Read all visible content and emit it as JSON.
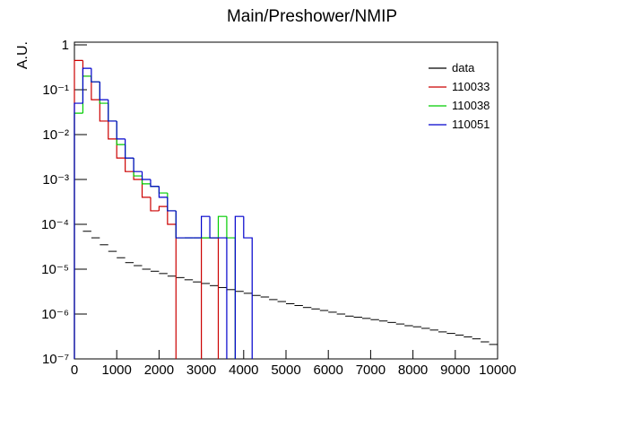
{
  "chart_data": {
    "type": "histogram",
    "title": "Main/Preshower/NMIP",
    "y_label": "A.U.",
    "log_y": true,
    "legend": "top-right",
    "xlim": [
      0,
      10000
    ],
    "ylim": [
      1e-07,
      1
    ],
    "xticks": [
      0,
      1000,
      2000,
      3000,
      4000,
      5000,
      6000,
      7000,
      8000,
      9000,
      10000
    ],
    "yticks": [
      {
        "value": 1e-07,
        "label": "10⁻⁷"
      },
      {
        "value": 1e-06,
        "label": "10⁻⁶"
      },
      {
        "value": 1e-05,
        "label": "10⁻⁵"
      },
      {
        "value": 0.0001,
        "label": "10⁻⁴"
      },
      {
        "value": 0.001,
        "label": "10⁻³"
      },
      {
        "value": 0.01,
        "label": "10⁻²"
      },
      {
        "value": 0.1,
        "label": "10⁻¹"
      },
      1
    ],
    "bins": [
      0,
      200,
      400,
      600,
      800,
      1000,
      1200,
      1400,
      1600,
      1800,
      2000,
      2200,
      2400,
      2600,
      2800,
      3000,
      3200,
      3400,
      3600,
      3800,
      4000,
      4200,
      4400,
      4600,
      4800,
      5000,
      5200,
      5400,
      5600,
      5800,
      6000,
      6200,
      6400,
      6600,
      6800,
      7000,
      7200,
      7400,
      7600,
      7800,
      8000,
      8200,
      8400,
      8600,
      8800,
      9000,
      9200,
      9400,
      9600,
      9800,
      10000
    ],
    "series": [
      {
        "name": "data",
        "color": "#000000",
        "style": "points",
        "values": [
          0.0001,
          7e-05,
          5e-05,
          3.5e-05,
          2.5e-05,
          1.8e-05,
          1.4e-05,
          1.2e-05,
          1e-05,
          9e-06,
          8e-06,
          7e-06,
          6.5e-06,
          5.8e-06,
          5.2e-06,
          4.8e-06,
          4.3e-06,
          3.9e-06,
          3.5e-06,
          3.2e-06,
          2.9e-06,
          2.6e-06,
          2.4e-06,
          2.1e-06,
          1.9e-06,
          1.7e-06,
          1.55e-06,
          1.4e-06,
          1.3e-06,
          1.2e-06,
          1.1e-06,
          1e-06,
          9e-07,
          8.5e-07,
          8e-07,
          7.5e-07,
          7e-07,
          6.5e-07,
          6e-07,
          5.5e-07,
          5.2e-07,
          4.8e-07,
          4.4e-07,
          4e-07,
          3.7e-07,
          3.4e-07,
          3.1e-07,
          2.8e-07,
          2.4e-07,
          2.1e-07
        ]
      },
      {
        "name": "110033",
        "color": "#cc0000",
        "style": "step",
        "values": [
          0.45,
          0.2,
          0.06,
          0.02,
          0.008,
          0.003,
          0.0015,
          0.001,
          0.0004,
          0.0002,
          0.00025,
          0.0001,
          null,
          null,
          null,
          5e-05,
          5e-05,
          null,
          null,
          null,
          null,
          null,
          null,
          null,
          null,
          null,
          null,
          null,
          null,
          null,
          null,
          null,
          null,
          null,
          null,
          null,
          null,
          null,
          null,
          null,
          null,
          null,
          null,
          null,
          null,
          null,
          null,
          null,
          null,
          null
        ]
      },
      {
        "name": "110038",
        "color": "#00cc00",
        "style": "step",
        "values": [
          0.03,
          0.2,
          0.15,
          0.05,
          0.02,
          0.006,
          0.003,
          0.0012,
          0.0008,
          0.0007,
          0.0005,
          0.0002,
          5e-05,
          5e-05,
          5e-05,
          5e-05,
          5e-05,
          0.00015,
          5e-05,
          null,
          null,
          null,
          null,
          null,
          null,
          null,
          null,
          null,
          null,
          null,
          null,
          null,
          null,
          null,
          null,
          null,
          null,
          null,
          null,
          null,
          null,
          null,
          null,
          null,
          null,
          null,
          null,
          null,
          null,
          null
        ]
      },
      {
        "name": "110051",
        "color": "#0000cc",
        "style": "step",
        "values": [
          0.05,
          0.3,
          0.15,
          0.06,
          0.02,
          0.008,
          0.003,
          0.0015,
          0.001,
          0.0007,
          0.0004,
          0.0002,
          5e-05,
          5e-05,
          5e-05,
          0.00015,
          5e-05,
          5e-05,
          null,
          0.00015,
          5e-05,
          null,
          null,
          null,
          null,
          null,
          null,
          null,
          null,
          null,
          null,
          null,
          null,
          null,
          null,
          null,
          null,
          null,
          null,
          null,
          null,
          null,
          null,
          null,
          null,
          null,
          null,
          null,
          null,
          null
        ]
      }
    ]
  }
}
